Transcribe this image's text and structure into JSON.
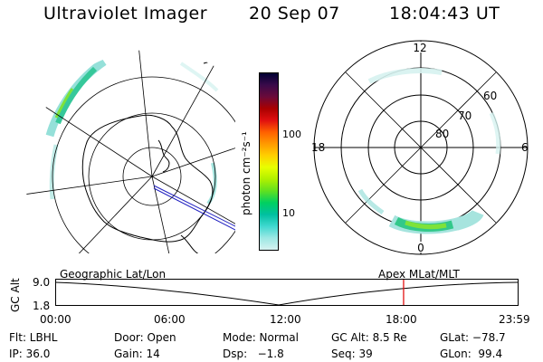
{
  "header": {
    "title": "Ultraviolet Imager",
    "date": "20 Sep 07",
    "time": "18:04:43 UT"
  },
  "geo_map": {
    "label": "Geographic Lat/Lon"
  },
  "apex_map": {
    "label": "Apex MLat/MLT",
    "mlt_labels": {
      "top": "12",
      "bottom": "0",
      "left": "18",
      "right": "6"
    },
    "lat_labels": [
      "60",
      "70",
      "80"
    ]
  },
  "colorbar": {
    "unit_label": "photon cm⁻²s⁻¹",
    "ticks": [
      "100",
      "10"
    ],
    "colors": [
      "#000033",
      "#3a0a4a",
      "#6a0a3a",
      "#aa0000",
      "#e01010",
      "#ff6000",
      "#ff9a00",
      "#ffd000",
      "#e8ff00",
      "#b0f000",
      "#60e020",
      "#00d060",
      "#00c0a0",
      "#40d8d0",
      "#9ce8e4",
      "#d6f2f0"
    ]
  },
  "timeline": {
    "alt_axis_label": "GC Alt",
    "alt_ticks": [
      "9.0",
      "1.8"
    ],
    "time_ticks": [
      "00:00",
      "06:00",
      "12:00",
      "18:00",
      "23:59"
    ],
    "current_marker_hours": 18.08
  },
  "status": {
    "filter": "Flt: LBHL",
    "door": "Door: Open",
    "mode": "Mode: Normal",
    "gc_alt": "GC Alt: 8.5 Re",
    "glat": "GLat: −78.7",
    "ip": "IP: 36.0",
    "gain": "Gain: 14",
    "dsp": "Dsp:   −1.8",
    "seq": "Seq: 39",
    "glon": "GLon:  99.4"
  }
}
